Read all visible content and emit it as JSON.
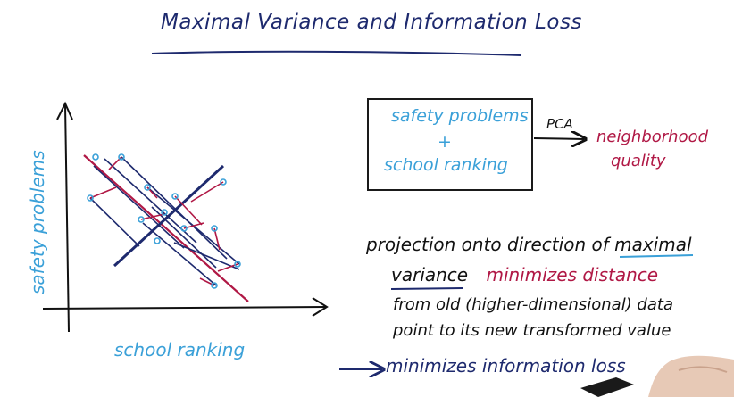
{
  "title": "Maximal Variance and Information Loss",
  "axes": {
    "x_label": "school ranking",
    "y_label": "safety problems"
  },
  "box": {
    "line1": "safety problems",
    "line2": "+",
    "line3": "school ranking"
  },
  "arrow_label": "PCA",
  "output": {
    "line1": "neighborhood",
    "line2": "quality"
  },
  "notes": {
    "line1_part1": "projection onto direction of ",
    "line1_part2": "maximal",
    "line2_part1": "variance",
    "line2_part2": "minimizes distance",
    "line3": "from old (higher-dimensional) data",
    "line4": "point to its new transformed value",
    "line5": "minimizes information loss"
  },
  "colors": {
    "ink_dark": "#1e2a6e",
    "ink_blue": "#3aa0d8",
    "ink_red": "#b01845",
    "ink_black": "#111111"
  }
}
